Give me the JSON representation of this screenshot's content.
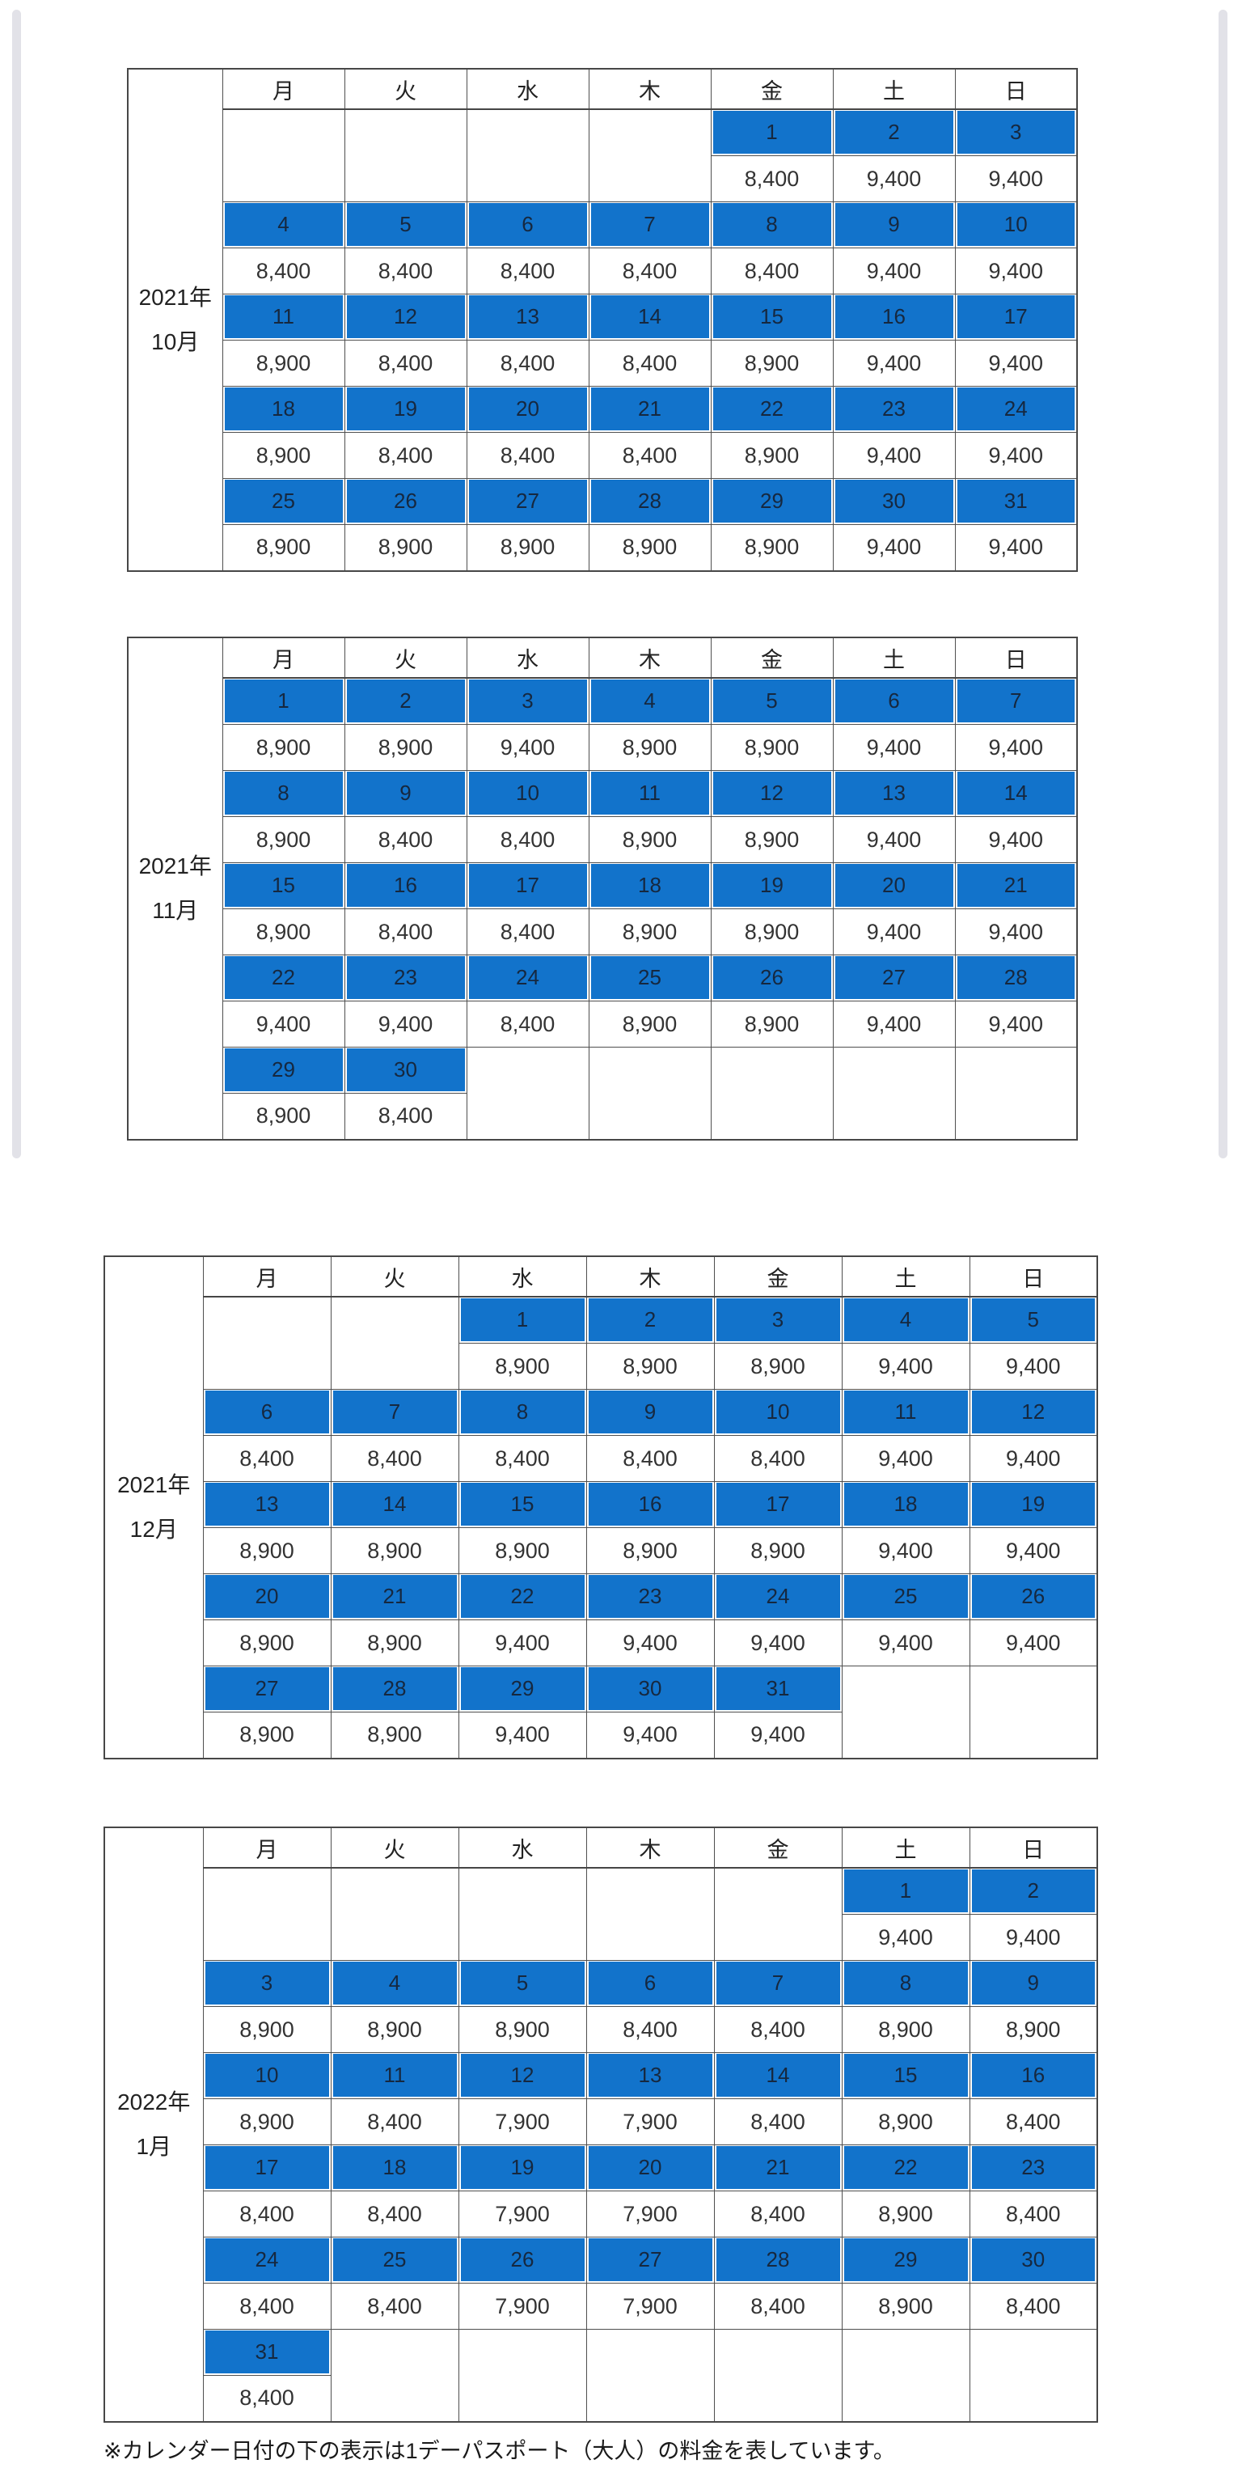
{
  "colors": {
    "highlight": "#1273cb",
    "border": "#4f4f4f",
    "date_text": "#16283f"
  },
  "weekdays": [
    "月",
    "火",
    "水",
    "木",
    "金",
    "土",
    "日"
  ],
  "footer_note": "※カレンダー日付の下の表示は1デーパスポート（大人）の料金を表しています。",
  "calendars": [
    {
      "year_label": "2021年",
      "month_label": "10月",
      "weeks": [
        {
          "dates": [
            "",
            "",
            "",
            "",
            "1",
            "2",
            "3"
          ],
          "prices": [
            "",
            "",
            "",
            "",
            "8,400",
            "9,400",
            "9,400"
          ]
        },
        {
          "dates": [
            "4",
            "5",
            "6",
            "7",
            "8",
            "9",
            "10"
          ],
          "prices": [
            "8,400",
            "8,400",
            "8,400",
            "8,400",
            "8,400",
            "9,400",
            "9,400"
          ]
        },
        {
          "dates": [
            "11",
            "12",
            "13",
            "14",
            "15",
            "16",
            "17"
          ],
          "prices": [
            "8,900",
            "8,400",
            "8,400",
            "8,400",
            "8,900",
            "9,400",
            "9,400"
          ]
        },
        {
          "dates": [
            "18",
            "19",
            "20",
            "21",
            "22",
            "23",
            "24"
          ],
          "prices": [
            "8,900",
            "8,400",
            "8,400",
            "8,400",
            "8,900",
            "9,400",
            "9,400"
          ]
        },
        {
          "dates": [
            "25",
            "26",
            "27",
            "28",
            "29",
            "30",
            "31"
          ],
          "prices": [
            "8,900",
            "8,900",
            "8,900",
            "8,900",
            "8,900",
            "9,400",
            "9,400"
          ]
        }
      ]
    },
    {
      "year_label": "2021年",
      "month_label": "11月",
      "weeks": [
        {
          "dates": [
            "1",
            "2",
            "3",
            "4",
            "5",
            "6",
            "7"
          ],
          "prices": [
            "8,900",
            "8,900",
            "9,400",
            "8,900",
            "8,900",
            "9,400",
            "9,400"
          ]
        },
        {
          "dates": [
            "8",
            "9",
            "10",
            "11",
            "12",
            "13",
            "14"
          ],
          "prices": [
            "8,900",
            "8,400",
            "8,400",
            "8,900",
            "8,900",
            "9,400",
            "9,400"
          ]
        },
        {
          "dates": [
            "15",
            "16",
            "17",
            "18",
            "19",
            "20",
            "21"
          ],
          "prices": [
            "8,900",
            "8,400",
            "8,400",
            "8,900",
            "8,900",
            "9,400",
            "9,400"
          ]
        },
        {
          "dates": [
            "22",
            "23",
            "24",
            "25",
            "26",
            "27",
            "28"
          ],
          "prices": [
            "9,400",
            "9,400",
            "8,400",
            "8,900",
            "8,900",
            "9,400",
            "9,400"
          ]
        },
        {
          "dates": [
            "29",
            "30",
            "",
            "",
            "",
            "",
            ""
          ],
          "prices": [
            "8,900",
            "8,400",
            "",
            "",
            "",
            "",
            ""
          ]
        }
      ]
    },
    {
      "year_label": "2021年",
      "month_label": "12月",
      "weeks": [
        {
          "dates": [
            "",
            "",
            "1",
            "2",
            "3",
            "4",
            "5"
          ],
          "prices": [
            "",
            "",
            "8,900",
            "8,900",
            "8,900",
            "9,400",
            "9,400"
          ]
        },
        {
          "dates": [
            "6",
            "7",
            "8",
            "9",
            "10",
            "11",
            "12"
          ],
          "prices": [
            "8,400",
            "8,400",
            "8,400",
            "8,400",
            "8,400",
            "9,400",
            "9,400"
          ]
        },
        {
          "dates": [
            "13",
            "14",
            "15",
            "16",
            "17",
            "18",
            "19"
          ],
          "prices": [
            "8,900",
            "8,900",
            "8,900",
            "8,900",
            "8,900",
            "9,400",
            "9,400"
          ]
        },
        {
          "dates": [
            "20",
            "21",
            "22",
            "23",
            "24",
            "25",
            "26"
          ],
          "prices": [
            "8,900",
            "8,900",
            "9,400",
            "9,400",
            "9,400",
            "9,400",
            "9,400"
          ]
        },
        {
          "dates": [
            "27",
            "28",
            "29",
            "30",
            "31",
            "",
            ""
          ],
          "prices": [
            "8,900",
            "8,900",
            "9,400",
            "9,400",
            "9,400",
            "",
            ""
          ]
        }
      ]
    },
    {
      "year_label": "2022年",
      "month_label": "1月",
      "weeks": [
        {
          "dates": [
            "",
            "",
            "",
            "",
            "",
            "1",
            "2"
          ],
          "prices": [
            "",
            "",
            "",
            "",
            "",
            "9,400",
            "9,400"
          ]
        },
        {
          "dates": [
            "3",
            "4",
            "5",
            "6",
            "7",
            "8",
            "9"
          ],
          "prices": [
            "8,900",
            "8,900",
            "8,900",
            "8,400",
            "8,400",
            "8,900",
            "8,900"
          ]
        },
        {
          "dates": [
            "10",
            "11",
            "12",
            "13",
            "14",
            "15",
            "16"
          ],
          "prices": [
            "8,900",
            "8,400",
            "7,900",
            "7,900",
            "8,400",
            "8,900",
            "8,400"
          ]
        },
        {
          "dates": [
            "17",
            "18",
            "19",
            "20",
            "21",
            "22",
            "23"
          ],
          "prices": [
            "8,400",
            "8,400",
            "7,900",
            "7,900",
            "8,400",
            "8,900",
            "8,400"
          ]
        },
        {
          "dates": [
            "24",
            "25",
            "26",
            "27",
            "28",
            "29",
            "30"
          ],
          "prices": [
            "8,400",
            "8,400",
            "7,900",
            "7,900",
            "8,400",
            "8,900",
            "8,400"
          ]
        },
        {
          "dates": [
            "31",
            "",
            "",
            "",
            "",
            "",
            ""
          ],
          "prices": [
            "8,400",
            "",
            "",
            "",
            "",
            "",
            ""
          ]
        }
      ]
    }
  ]
}
